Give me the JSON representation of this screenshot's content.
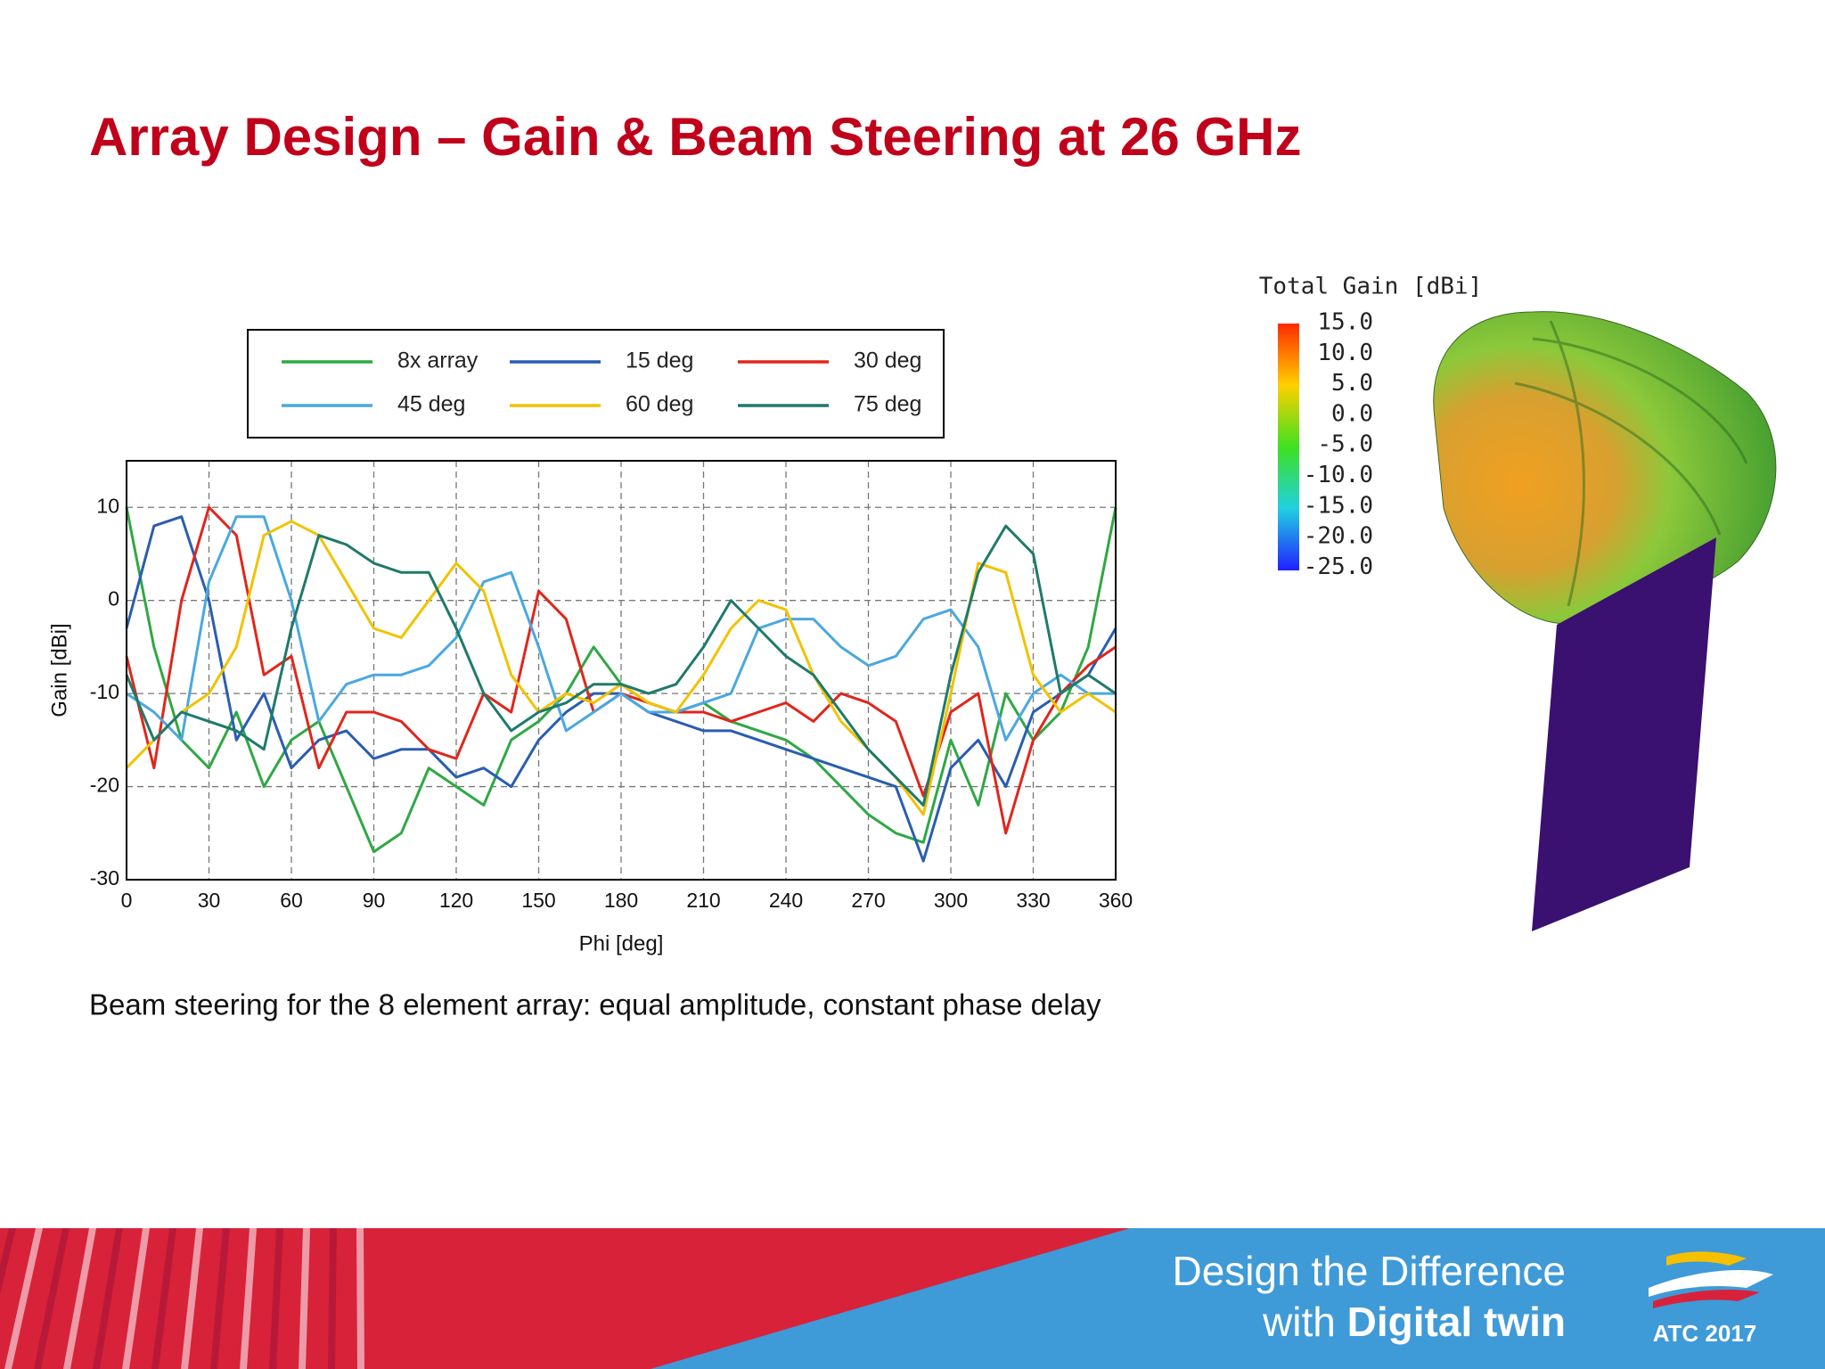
{
  "slide_title": "Array Design – Gain & Beam Steering at 26 GHz",
  "caption": "Beam steering for the 8 element array: equal amplitude, constant phase delay",
  "colorbar": {
    "title": "Total Gain [dBi]",
    "labels": [
      "15.0",
      "10.0",
      "5.0",
      "0.0",
      "-5.0",
      "-10.0",
      "-15.0",
      "-20.0",
      "-25.0"
    ]
  },
  "footer": {
    "line1": "Design the Difference",
    "line2_a": "with",
    "line2_b": "Digital twin",
    "logo": "ATC 2017"
  },
  "chart_data": {
    "type": "line",
    "x_label": "Phi [deg]",
    "y_label": "Gain [dBi]",
    "x": [
      0,
      10,
      20,
      30,
      40,
      50,
      60,
      70,
      80,
      90,
      100,
      110,
      120,
      130,
      140,
      150,
      160,
      170,
      180,
      190,
      200,
      210,
      220,
      230,
      240,
      250,
      260,
      270,
      280,
      290,
      300,
      310,
      320,
      330,
      340,
      350,
      360
    ],
    "xlim": [
      0,
      360
    ],
    "xticks": [
      0,
      30,
      60,
      90,
      120,
      150,
      180,
      210,
      240,
      270,
      300,
      330,
      360
    ],
    "ylim": [
      -30,
      15
    ],
    "yticks": [
      -30,
      -20,
      -10,
      0,
      10
    ],
    "grid": true,
    "legend": "top",
    "series": [
      {
        "name": "8x array",
        "color": "#2fa844",
        "values": [
          10,
          -5,
          -15,
          -18,
          -12,
          -20,
          -15,
          -13,
          -20,
          -27,
          -25,
          -18,
          -20,
          -22,
          -15,
          -13,
          -10,
          -5,
          -9,
          -11,
          -12,
          -11,
          -13,
          -14,
          -15,
          -17,
          -20,
          -23,
          -25,
          -26,
          -15,
          -22,
          -10,
          -15,
          -12,
          -5,
          10
        ]
      },
      {
        "name": "15 deg",
        "color": "#2a5db0",
        "values": [
          -3,
          8,
          9,
          0,
          -15,
          -10,
          -18,
          -15,
          -14,
          -17,
          -16,
          -16,
          -19,
          -18,
          -20,
          -15,
          -12,
          -10,
          -10,
          -12,
          -13,
          -14,
          -14,
          -15,
          -16,
          -17,
          -18,
          -19,
          -20,
          -28,
          -18,
          -15,
          -20,
          -12,
          -10,
          -8,
          -3
        ]
      },
      {
        "name": "30 deg",
        "color": "#e0261c",
        "values": [
          -6,
          -18,
          0,
          10,
          7,
          -8,
          -6,
          -18,
          -12,
          -12,
          -13,
          -16,
          -17,
          -10,
          -12,
          1,
          -2,
          -12,
          -10,
          -11,
          -12,
          -12,
          -13,
          -12,
          -11,
          -13,
          -10,
          -11,
          -13,
          -21,
          -12,
          -10,
          -25,
          -15,
          -10,
          -7,
          -5
        ]
      },
      {
        "name": "45 deg",
        "color": "#4aa8e0",
        "values": [
          -10,
          -12,
          -15,
          2,
          9,
          9,
          0,
          -13,
          -9,
          -8,
          -8,
          -7,
          -4,
          2,
          3,
          -5,
          -14,
          -12,
          -10,
          -12,
          -12,
          -11,
          -10,
          -3,
          -2,
          -2,
          -5,
          -7,
          -6,
          -2,
          -1,
          -5,
          -15,
          -10,
          -8,
          -10,
          -10
        ]
      },
      {
        "name": "60 deg",
        "color": "#f2c200",
        "values": [
          -18,
          -15,
          -12,
          -10,
          -5,
          7,
          8.5,
          7,
          2,
          -3,
          -4,
          0,
          4,
          1,
          -8,
          -12,
          -10,
          -11,
          -9,
          -11,
          -12,
          -8,
          -3,
          0,
          -1,
          -8,
          -13,
          -16,
          -19,
          -23,
          -10,
          4,
          3,
          -8,
          -12,
          -10,
          -12
        ]
      },
      {
        "name": "75 deg",
        "color": "#1f7a6a",
        "values": [
          -8,
          -15,
          -12,
          -13,
          -14,
          -16,
          -3,
          7,
          6,
          4,
          3,
          3,
          -3,
          -10,
          -14,
          -12,
          -11,
          -9,
          -9,
          -10,
          -9,
          -5,
          0,
          -3,
          -6,
          -8,
          -12,
          -16,
          -19,
          -22,
          -8,
          3,
          8,
          5,
          -10,
          -8,
          -10
        ]
      }
    ]
  }
}
